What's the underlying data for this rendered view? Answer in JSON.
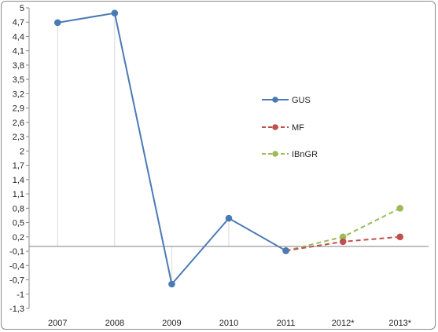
{
  "chart_data": {
    "type": "line",
    "categories": [
      "2007",
      "2008",
      "2009",
      "2010",
      "2011",
      "2012*",
      "2013*"
    ],
    "ylim": [
      -1.3,
      5
    ],
    "yticks": [
      "5",
      "4,7",
      "4,4",
      "4,1",
      "3,8",
      "3,5",
      "3,2",
      "2,9",
      "2,6",
      "2,3",
      "2",
      "1,7",
      "1,4",
      "1,1",
      "0,8",
      "0,5",
      "0,2",
      "-0,1",
      "-0,4",
      "-0,7",
      "-1",
      "-1,3"
    ],
    "ytick_values": [
      5,
      4.7,
      4.4,
      4.1,
      3.8,
      3.5,
      3.2,
      2.9,
      2.6,
      2.3,
      2,
      1.7,
      1.4,
      1.1,
      0.8,
      0.5,
      0.2,
      -0.1,
      -0.4,
      -0.7,
      -1,
      -1.3
    ],
    "baseline": 0,
    "grid": false,
    "legend_position": "right-middle",
    "series": [
      {
        "name": "GUS",
        "color": "#4a7ab5",
        "dash": "solid",
        "values": [
          4.69,
          4.89,
          -0.79,
          0.59,
          -0.09,
          null,
          null
        ],
        "drop_lines": true
      },
      {
        "name": "MF",
        "color": "#c0504d",
        "dash": "dashed",
        "values": [
          null,
          null,
          null,
          null,
          -0.09,
          0.1,
          0.2
        ]
      },
      {
        "name": "IBnGR",
        "color": "#9bbb59",
        "dash": "dashed",
        "values": [
          null,
          null,
          null,
          null,
          -0.09,
          0.2,
          0.8
        ]
      }
    ]
  }
}
